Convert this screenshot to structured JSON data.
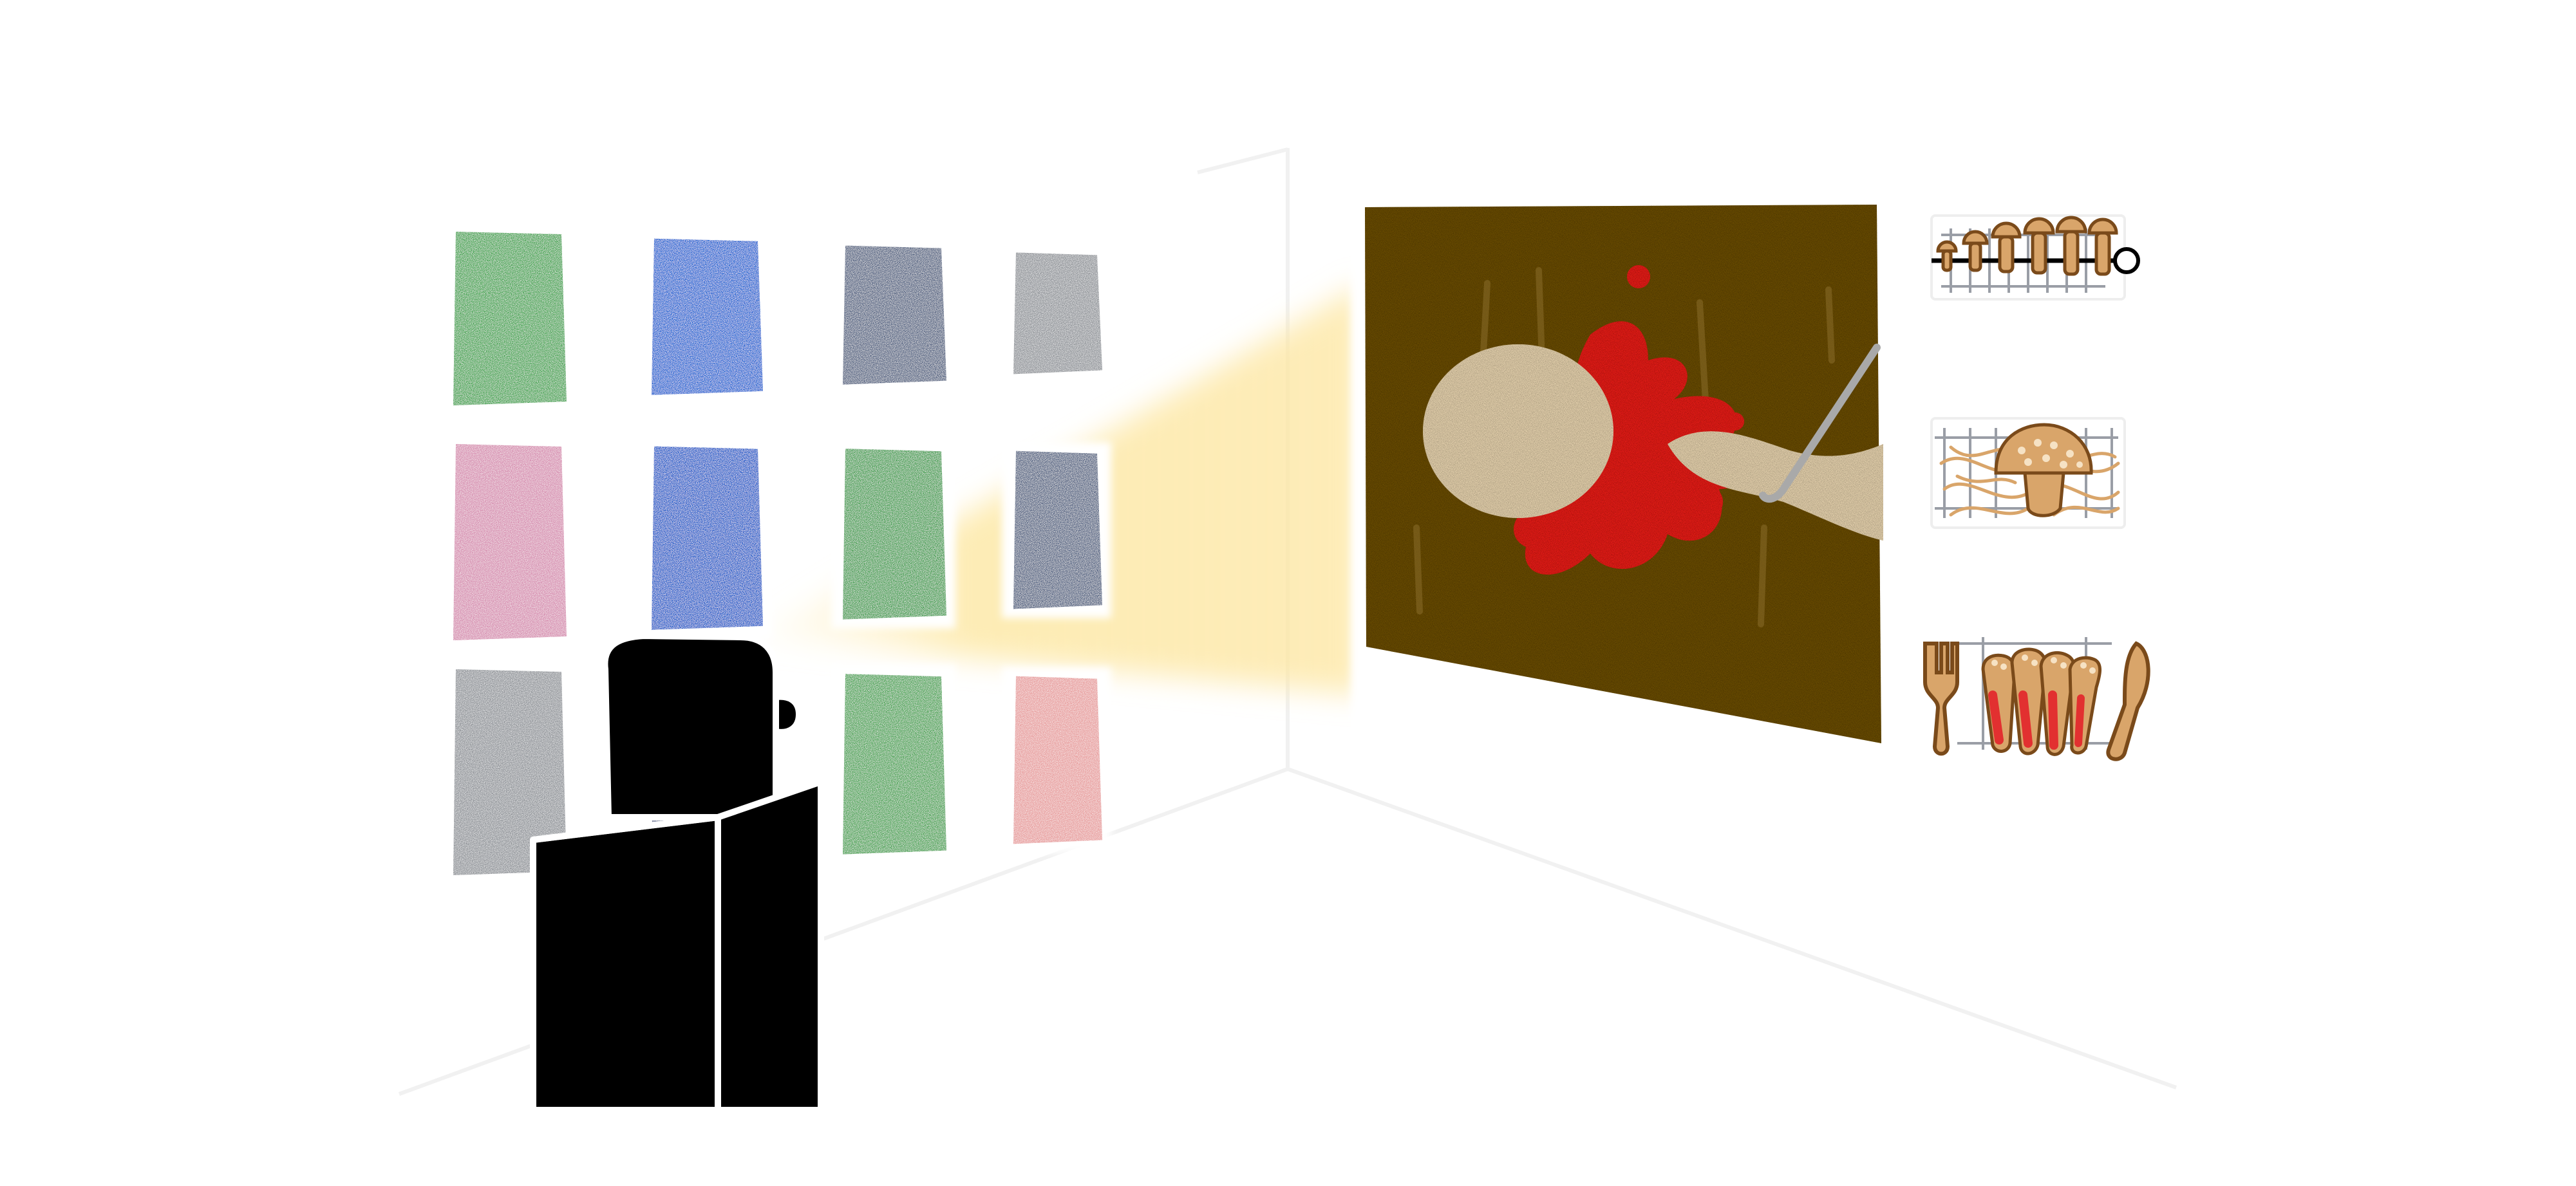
{
  "scene": {
    "background": "#ffffff",
    "wall_grid": {
      "rows": 3,
      "cols": 4,
      "tiles": [
        [
          "#3aa348",
          "#0a5ed1",
          "#4b5c7e",
          "#8d9196"
        ],
        [
          "#d68aae",
          "#0d55c8",
          "#3a9c48",
          "#4b5c7e"
        ],
        [
          "#8d9196",
          "#36497b",
          "#42a24d",
          "#e79a9a"
        ]
      ]
    },
    "viewer": {
      "icon": "boxy-robot-viewer-icon",
      "color": "#000000",
      "outline": "#ffffff"
    },
    "light_beam": {
      "color": "#fde9a8"
    },
    "featured_painting": {
      "background": "#6f5109",
      "blob_color": "#f0dbb5",
      "splash_color": "#f0201e",
      "hook_color": "#a9a9a9"
    },
    "side_icons": [
      {
        "name": "mushroom-skewer-icon"
      },
      {
        "name": "mushroom-nest-icon"
      },
      {
        "name": "sliced-mushroom-with-cutlery-icon"
      }
    ],
    "palette": {
      "mushroom_fill": "#d9a56a",
      "mushroom_stroke": "#7a4a1a",
      "spot": "#f6e2c4",
      "grill": "#9a9ea6",
      "red_slice": "#e23030"
    }
  }
}
